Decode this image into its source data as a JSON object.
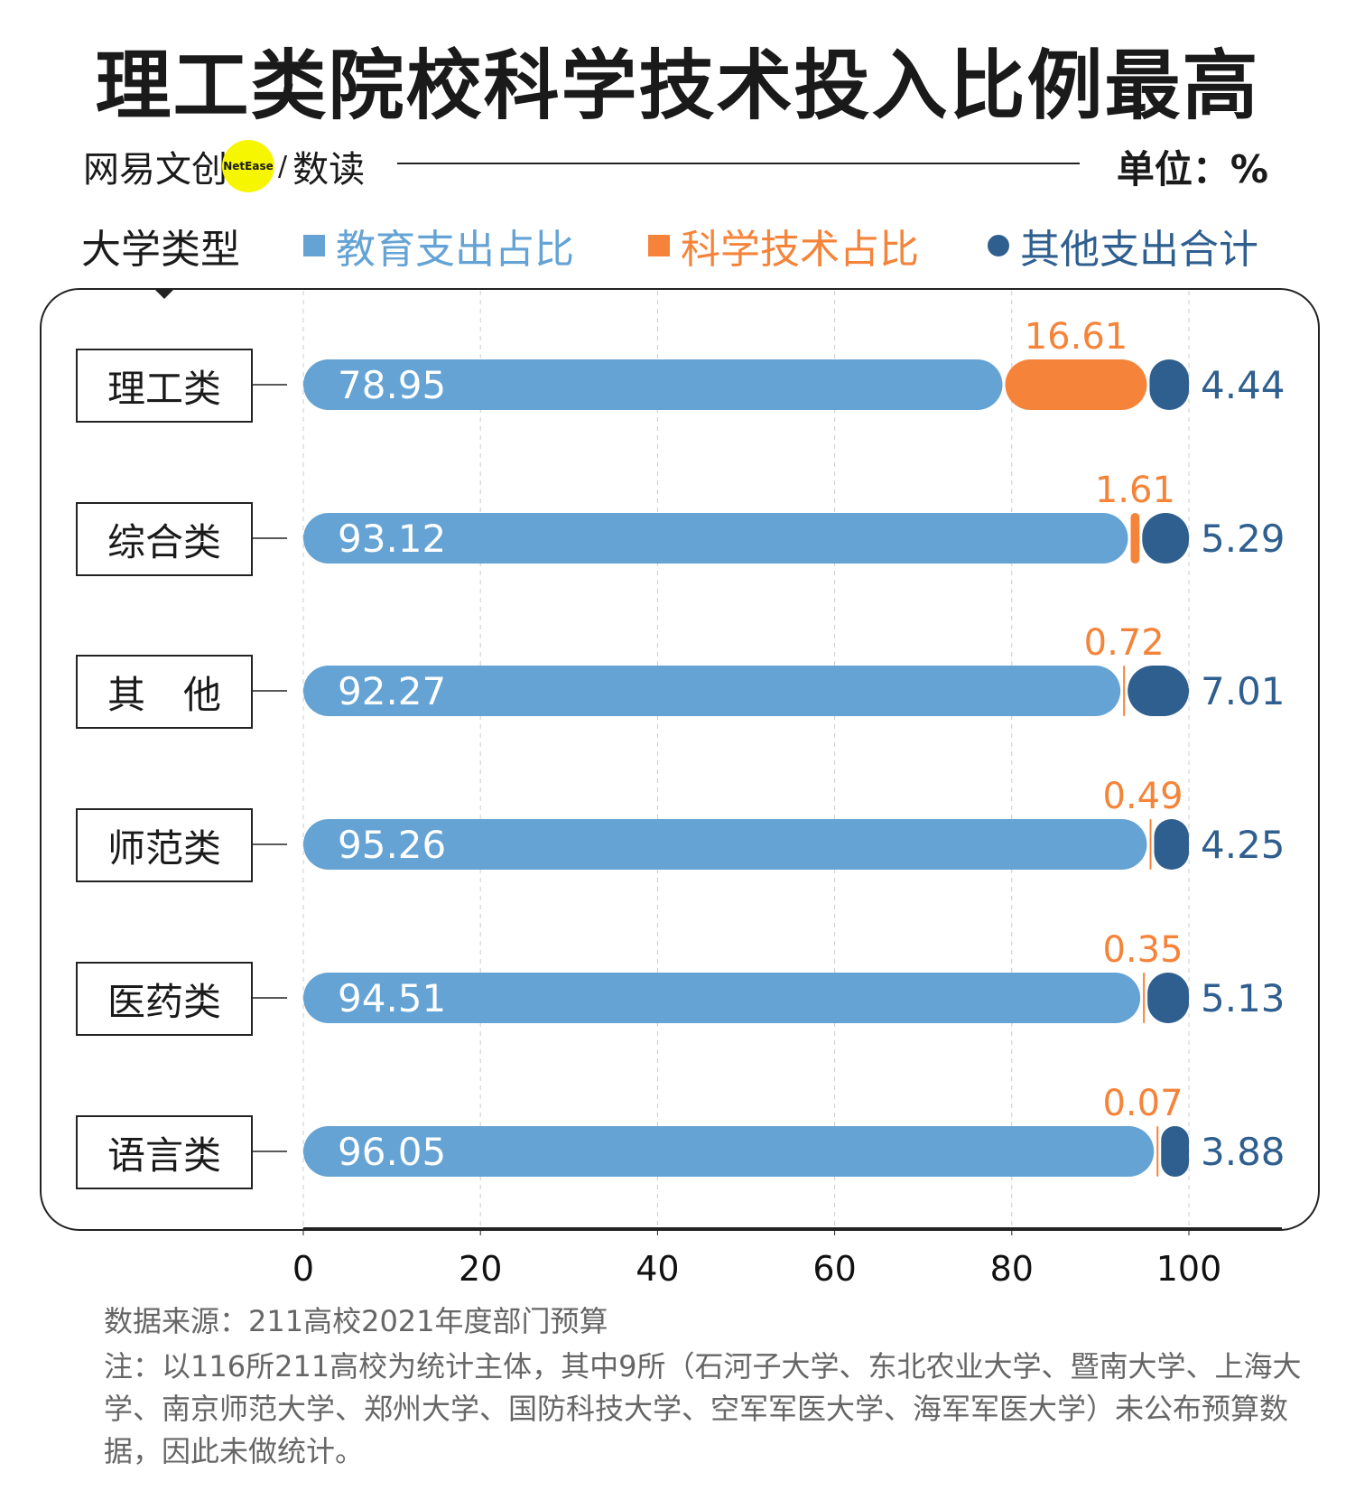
{
  "title": "理工类院校科学技术投入比例最高",
  "brand": {
    "name": "网易文创",
    "badge": "NetEase",
    "separator": "/",
    "sub": "数读"
  },
  "unit": "单位：%",
  "category_header": "大学类型",
  "colors": {
    "education": "#64a3d4",
    "science": "#f5843a",
    "other": "#2f5f8f"
  },
  "chart_data": {
    "type": "bar",
    "stacked": true,
    "orientation": "horizontal",
    "categories": [
      "理工类",
      "综合类",
      "其　他",
      "师范类",
      "医药类",
      "语言类"
    ],
    "series": [
      {
        "name": "教育支出占比",
        "values": [
          78.95,
          93.12,
          92.27,
          95.26,
          94.51,
          96.05
        ]
      },
      {
        "name": "科学技术占比",
        "values": [
          16.61,
          1.61,
          0.72,
          0.49,
          0.35,
          0.07
        ]
      },
      {
        "name": "其他支出合计",
        "values": [
          4.44,
          5.29,
          7.01,
          4.25,
          5.13,
          3.88
        ]
      }
    ],
    "labels": {
      "education": [
        "78.95",
        "93.12",
        "92.27",
        "95.26",
        "94.51",
        "96.05"
      ],
      "science": [
        "16.61",
        "1.61",
        "0.72",
        "0.49",
        "0.35",
        "0.07"
      ],
      "other": [
        "4.44",
        "5.29",
        "7.01",
        "4.25",
        "5.13",
        "3.88"
      ]
    },
    "xlim": [
      0,
      100
    ],
    "xticks": [
      "0",
      "20",
      "40",
      "60",
      "80",
      "100"
    ],
    "grid": true,
    "legend": "top"
  },
  "source": "数据来源：211高校2021年度部门预算",
  "note": "注：以116所211高校为统计主体，其中9所（石河子大学、东北农业大学、暨南大学、上海大学、南京师范大学、郑州大学、国防科技大学、空军军医大学、海军军医大学）未公布预算数据，因此未做统计。"
}
